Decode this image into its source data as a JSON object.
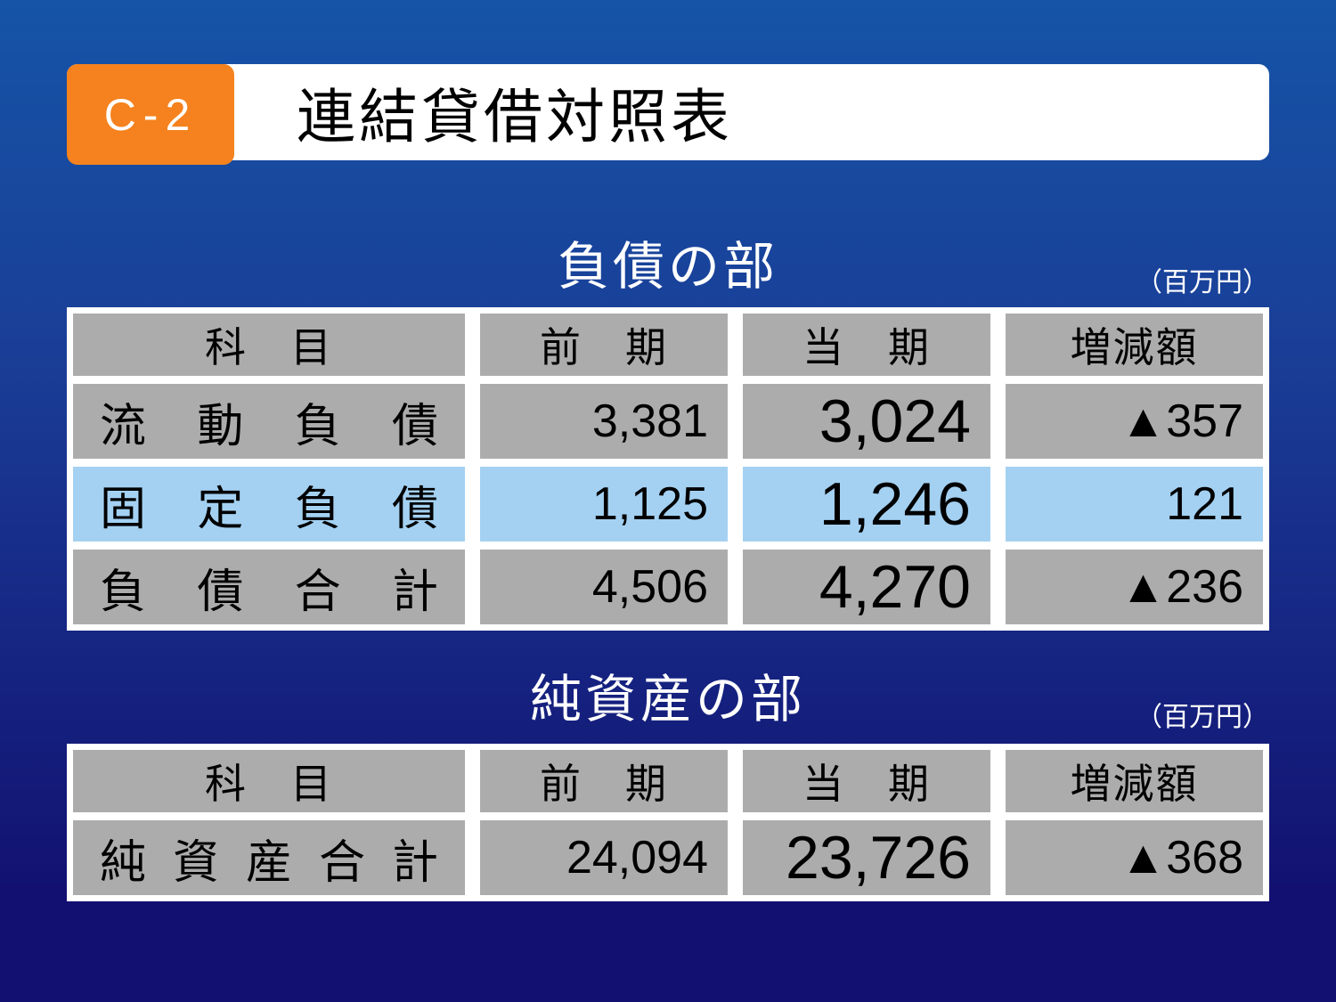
{
  "slide": {
    "badge": "C-2",
    "title": "連結貸借対照表"
  },
  "tables": [
    {
      "section_title": "負債の部",
      "unit_note": "（百万円）",
      "columns": [
        "科　目",
        "前　期",
        "当　期",
        "増減額"
      ],
      "rows": [
        {
          "label": "流 動 負 債",
          "prev": "3,381",
          "current": "3,024",
          "change": "▲357",
          "highlight": false
        },
        {
          "label": "固 定 負 債",
          "prev": "1,125",
          "current": "1,246",
          "change": "121",
          "highlight": true
        },
        {
          "label": "負 債 合 計",
          "prev": "4,506",
          "current": "4,270",
          "change": "▲236",
          "highlight": false
        }
      ]
    },
    {
      "section_title": "純資産の部",
      "unit_note": "（百万円）",
      "columns": [
        "科　目",
        "前　期",
        "当　期",
        "増減額"
      ],
      "rows": [
        {
          "label": "純 資 産 合 計",
          "prev": "24,094",
          "current": "23,726",
          "change": "▲368",
          "highlight": false
        }
      ]
    }
  ],
  "colors": {
    "background_top": "#1554A7",
    "background_bottom": "#121070",
    "badge_orange": "#F5821E",
    "cell_gray": "#ACACAC",
    "highlight_blue": "#A4D1F2",
    "bar_white": "#FFFFFF",
    "negative_marker": "▲"
  }
}
